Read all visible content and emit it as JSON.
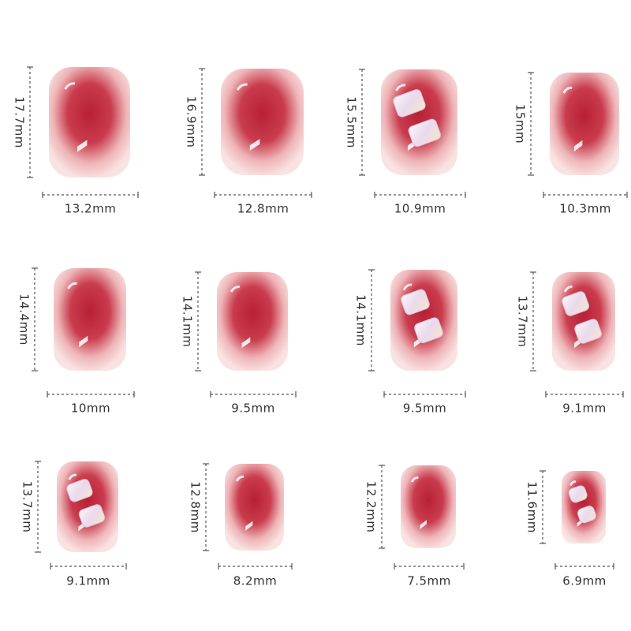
{
  "nails": [
    {
      "height": "17.7mm",
      "width": "13.2mm"
    },
    {
      "height": "16.9mm",
      "width": "12.8mm"
    },
    {
      "height": "15.5mm",
      "width": "10.9mm"
    },
    {
      "height": "15mm",
      "width": "10.3mm"
    },
    {
      "height": "14.4mm",
      "width": "10mm"
    },
    {
      "height": "14.1mm",
      "width": "9.5mm"
    },
    {
      "height": "14.1mm",
      "width": "9.5mm"
    },
    {
      "height": "13.7mm",
      "width": "9.1mm"
    },
    {
      "height": "13.7mm",
      "width": "9.1mm"
    },
    {
      "height": "12.8mm",
      "width": "8.2mm"
    },
    {
      "height": "12.2mm",
      "width": "7.5mm"
    },
    {
      "height": "11.6mm",
      "width": "6.9mm"
    }
  ]
}
